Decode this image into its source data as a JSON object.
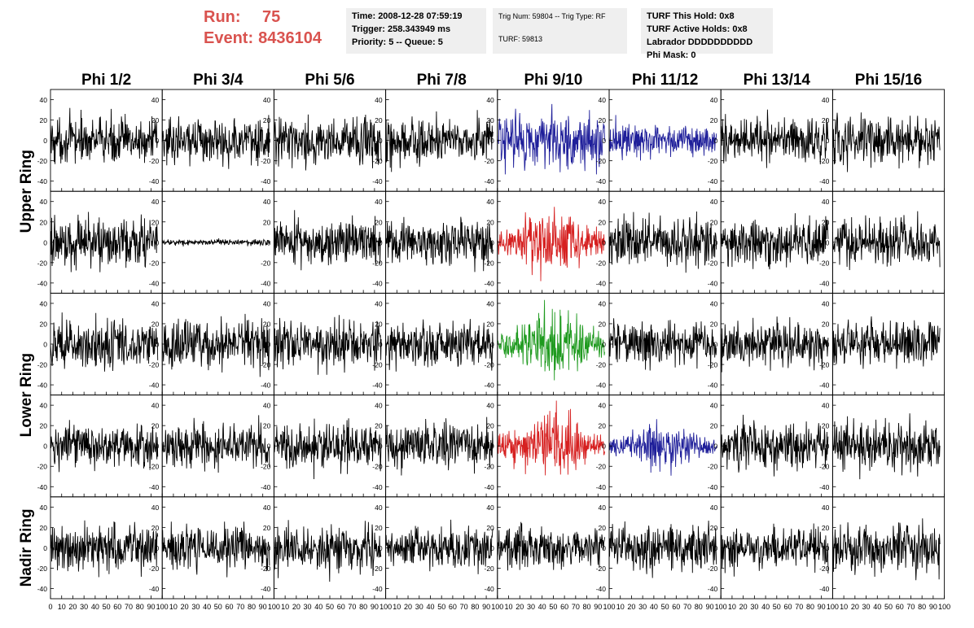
{
  "header": {
    "run_label": "Run:",
    "run_value": "75",
    "event_label": "Event:",
    "event_value": "8436104",
    "time": "Time: 2008-12-28 07:59:19",
    "trigger": "Trigger: 258.343949 ms",
    "priority": "Priority: 5 -- Queue: 5",
    "trig_num": "Trig Num: 59804 -- Trig Type: RF",
    "turf": "TURF: 59813",
    "turf_this_hold": "TURF This Hold: 0x8",
    "turf_active_holds": "TURF Active Holds: 0x8",
    "labrador": "Labrador DDDDDDDDDD",
    "phi_mask": "Phi Mask: 0"
  },
  "chart_data": {
    "type": "line",
    "columns": [
      "Phi 1/2",
      "Phi 3/4",
      "Phi 5/6",
      "Phi 7/8",
      "Phi 9/10",
      "Phi 11/12",
      "Phi 13/14",
      "Phi 15/16"
    ],
    "rows": [
      {
        "ring": "Upper Ring",
        "subrow": 0
      },
      {
        "ring": "Upper Ring",
        "subrow": 1
      },
      {
        "ring": "Lower Ring",
        "subrow": 0
      },
      {
        "ring": "Lower Ring",
        "subrow": 1
      },
      {
        "ring": "Nadir Ring",
        "subrow": 0
      }
    ],
    "ring_labels": [
      "Upper Ring",
      "Lower Ring",
      "Nadir Ring"
    ],
    "xlim": [
      0,
      100
    ],
    "ylim": [
      -50,
      50
    ],
    "x_ticks": [
      0,
      10,
      20,
      30,
      40,
      50,
      60,
      70,
      80,
      90,
      100
    ],
    "y_ticks": [
      -40,
      -20,
      0,
      20,
      40
    ],
    "x_range_of_samples": [
      0,
      96
    ],
    "amplitude_rms": [
      [
        11,
        11,
        11,
        11,
        14,
        8,
        11,
        12
      ],
      [
        12,
        1.5,
        11,
        11,
        11,
        12,
        11,
        11
      ],
      [
        12,
        12,
        11,
        11,
        11,
        11,
        11,
        11
      ],
      [
        10,
        11,
        11,
        11,
        10,
        7,
        11,
        12
      ],
      [
        12,
        11,
        11,
        10,
        10,
        11,
        11,
        12
      ]
    ],
    "trace_colors": [
      [
        "#000000",
        "#000000",
        "#000000",
        "#000000",
        "#1f1f9a",
        "#1f1f9a",
        "#000000",
        "#000000"
      ],
      [
        "#000000",
        "#000000",
        "#000000",
        "#000000",
        "#d62020",
        "#000000",
        "#000000",
        "#000000"
      ],
      [
        "#000000",
        "#000000",
        "#000000",
        "#000000",
        "#1e9a1e",
        "#000000",
        "#000000",
        "#000000"
      ],
      [
        "#000000",
        "#000000",
        "#000000",
        "#000000",
        "#d62020",
        "#1f1f9a",
        "#000000",
        "#000000"
      ],
      [
        "#000000",
        "#000000",
        "#000000",
        "#000000",
        "#000000",
        "#000000",
        "#000000",
        "#000000"
      ]
    ]
  }
}
